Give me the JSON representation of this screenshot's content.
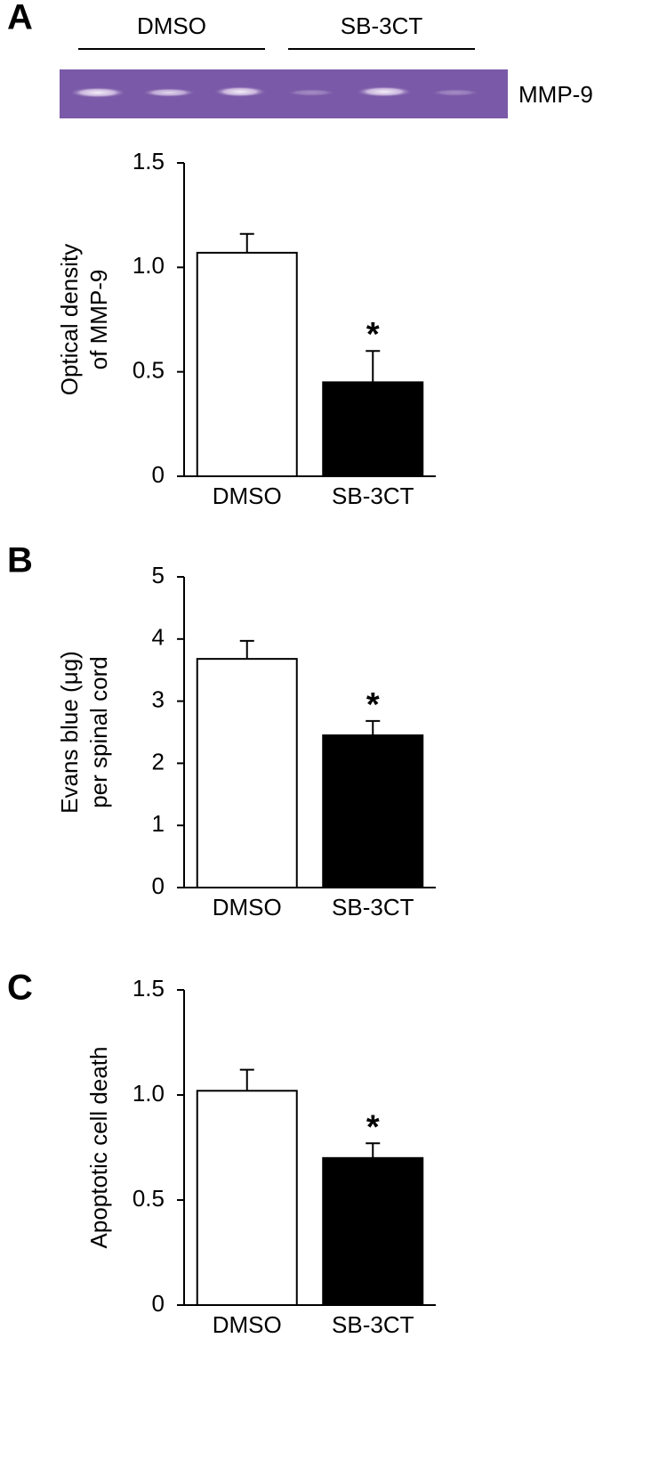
{
  "chart_data": [
    {
      "type": "bar",
      "panel": "A",
      "gel": {
        "groups": [
          "DMSO",
          "SB-3CT"
        ],
        "label": "MMP-9"
      },
      "ylabel": [
        "Optical density",
        "of MMP-9"
      ],
      "categories": [
        "DMSO",
        "SB-3CT"
      ],
      "values": [
        1.07,
        0.45
      ],
      "errors": [
        0.09,
        0.15
      ],
      "colors": [
        "#ffffff",
        "#000000"
      ],
      "annotations": [
        null,
        "*"
      ],
      "ylim": [
        0,
        1.5
      ],
      "yticks": [
        0,
        0.5,
        {
          "value": 1,
          "label": "1.0"
        },
        1.5
      ]
    },
    {
      "type": "bar",
      "panel": "B",
      "ylabel": [
        "Evans blue (μg)",
        "per spinal cord"
      ],
      "categories": [
        "DMSO",
        "SB-3CT"
      ],
      "values": [
        3.68,
        2.45
      ],
      "errors": [
        0.29,
        0.23
      ],
      "colors": [
        "#ffffff",
        "#000000"
      ],
      "annotations": [
        null,
        "*"
      ],
      "ylim": [
        0,
        5
      ],
      "yticks": [
        0,
        1,
        2,
        3,
        4,
        5
      ]
    },
    {
      "type": "bar",
      "panel": "C",
      "ylabel": [
        "Apoptotic cell death"
      ],
      "categories": [
        "DMSO",
        "SB-3CT"
      ],
      "values": [
        1.02,
        0.7
      ],
      "errors": [
        0.1,
        0.07
      ],
      "colors": [
        "#ffffff",
        "#000000"
      ],
      "annotations": [
        null,
        "*"
      ],
      "ylim": [
        0,
        1.5
      ],
      "yticks": [
        0,
        0.5,
        {
          "value": 1,
          "label": "1.0"
        },
        1.5
      ]
    }
  ]
}
